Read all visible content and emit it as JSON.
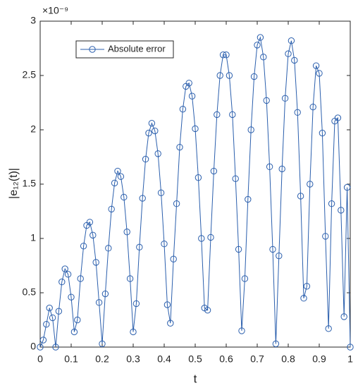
{
  "chart_data": {
    "type": "line",
    "xlabel": "t",
    "ylabel": "|e₁₂(t)|",
    "y_exponent": "×10⁻⁹",
    "x": [
      0,
      0.01,
      0.02,
      0.03,
      0.04,
      0.05,
      0.06,
      0.07,
      0.08,
      0.09,
      0.1,
      0.11,
      0.12,
      0.13,
      0.14,
      0.15,
      0.16,
      0.17,
      0.18,
      0.19,
      0.2,
      0.21,
      0.22,
      0.23,
      0.24,
      0.25,
      0.26,
      0.27,
      0.28,
      0.29,
      0.3,
      0.31,
      0.32,
      0.33,
      0.34,
      0.35,
      0.36,
      0.37,
      0.38,
      0.39,
      0.4,
      0.41,
      0.42,
      0.43,
      0.44,
      0.45,
      0.46,
      0.47,
      0.48,
      0.49,
      0.5,
      0.51,
      0.52,
      0.53,
      0.54,
      0.55,
      0.56,
      0.57,
      0.58,
      0.59,
      0.6,
      0.61,
      0.62,
      0.63,
      0.64,
      0.65,
      0.66,
      0.67,
      0.68,
      0.69,
      0.7,
      0.71,
      0.72,
      0.73,
      0.74,
      0.75,
      0.76,
      0.77,
      0.78,
      0.79,
      0.8,
      0.81,
      0.82,
      0.83,
      0.84,
      0.85,
      0.86,
      0.87,
      0.88,
      0.89,
      0.9,
      0.91,
      0.92,
      0.93,
      0.94,
      0.95,
      0.96,
      0.97,
      0.98,
      0.99,
      1
    ],
    "series": [
      {
        "name": "Absolute error",
        "color": "#2b5fad",
        "values": [
          0,
          0.065,
          0.21,
          0.36,
          0.27,
          0,
          0.33,
          0.6,
          0.72,
          0.67,
          0.46,
          0.14,
          0.25,
          0.63,
          0.93,
          1.12,
          1.15,
          1.03,
          0.78,
          0.41,
          0.03,
          0.49,
          0.91,
          1.27,
          1.51,
          1.62,
          1.57,
          1.38,
          1.06,
          0.63,
          0.14,
          0.4,
          0.92,
          1.37,
          1.73,
          1.97,
          2.06,
          1.99,
          1.78,
          1.42,
          0.95,
          0.39,
          0.22,
          0.81,
          1.32,
          1.84,
          2.19,
          2.4,
          2.43,
          2.31,
          2.01,
          1.56,
          1,
          0.36,
          0.34,
          1.01,
          1.62,
          2.14,
          2.5,
          2.69,
          2.69,
          2.5,
          2.14,
          1.55,
          0.9,
          0.15,
          0.63,
          1.36,
          2,
          2.49,
          2.78,
          2.85,
          2.67,
          2.27,
          1.66,
          0.9,
          0.03,
          0.84,
          1.64,
          2.29,
          2.7,
          2.82,
          2.64,
          2.16,
          1.39,
          0.45,
          0.56,
          1.5,
          2.21,
          2.59,
          2.52,
          1.97,
          1.02,
          0.17,
          1.32,
          2.08,
          2.11,
          1.26,
          0.28,
          1.47,
          0
        ]
      }
    ],
    "xlim": [
      0,
      1
    ],
    "xticks": [
      0,
      0.1,
      0.2,
      0.3,
      0.4,
      0.5,
      0.6,
      0.7,
      0.8,
      0.9,
      1
    ],
    "ylim": [
      0,
      3
    ],
    "yticks": [
      0,
      0.5,
      1,
      1.5,
      2,
      2.5,
      3
    ],
    "grid": false,
    "legend": "upper left",
    "markers": "open-circle"
  }
}
